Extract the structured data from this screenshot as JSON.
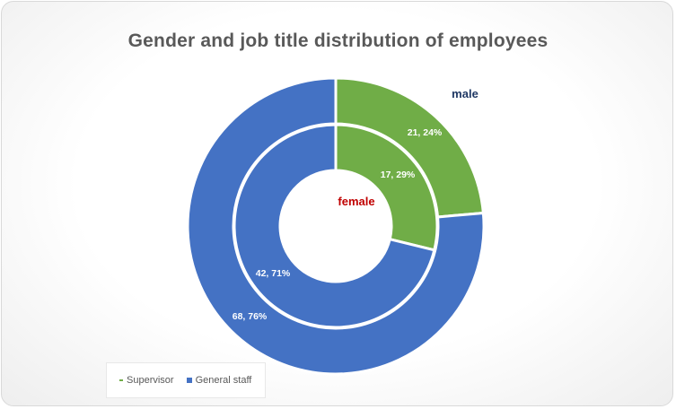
{
  "chart_data": {
    "type": "doughnut",
    "title": "Gender and job title distribution  of employees",
    "categories": [
      "Supervisor",
      "General staff"
    ],
    "colors": [
      "#70ad47",
      "#4472c4"
    ],
    "rings": [
      {
        "name": "male",
        "ring": "outer",
        "values": [
          21,
          68
        ],
        "labels": [
          "21, 24%",
          "68, 76%"
        ],
        "label_color": "#1f3864"
      },
      {
        "name": "female",
        "ring": "inner",
        "values": [
          17,
          42
        ],
        "labels": [
          "17, 29%",
          "42, 71%"
        ],
        "label_color": "#c00000"
      }
    ],
    "legend": {
      "position": "bottom-left",
      "entries": [
        "Supervisor",
        "General staff"
      ]
    }
  }
}
